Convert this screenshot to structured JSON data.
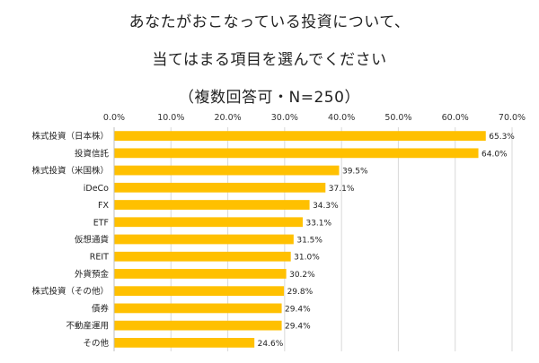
{
  "title_lines": [
    "あなたがおこなっている投資について、",
    "当てはまる項目を選んでください",
    "（複数回答可・N=250）"
  ],
  "colors": {
    "bar": "#FFC000",
    "grid": "#D9D9D9",
    "axis": "#BFBFBF"
  },
  "chart_data": {
    "type": "bar",
    "orientation": "horizontal",
    "title": "あなたがおこなっている投資について、当てはまる項目を選んでください（複数回答可・N=250）",
    "categories": [
      "株式投資（日本株）",
      "投資信託",
      "株式投資（米国株）",
      "iDeCo",
      "FX",
      "ETF",
      "仮想通貨",
      "REIT",
      "外貨預金",
      "株式投資（その他）",
      "債券",
      "不動産運用",
      "その他"
    ],
    "values": [
      65.3,
      64.0,
      39.5,
      37.1,
      34.3,
      33.1,
      31.5,
      31.0,
      30.2,
      29.8,
      29.4,
      29.4,
      24.6
    ],
    "data_labels": [
      "65.3%",
      "64.0%",
      "39.5%",
      "37.1%",
      "34.3%",
      "33.1%",
      "31.5%",
      "31.0%",
      "30.2%",
      "29.8%",
      "29.4%",
      "29.4%",
      "24.6%"
    ],
    "x_ticks": [
      0,
      10,
      20,
      30,
      40,
      50,
      60,
      70
    ],
    "x_tick_labels": [
      "0.0%",
      "10.0%",
      "20.0%",
      "30.0%",
      "40.0%",
      "50.0%",
      "60.0%",
      "70.0%"
    ],
    "xlim": [
      0,
      70
    ],
    "x_axis_position": "top",
    "grid": true,
    "legend": false
  }
}
